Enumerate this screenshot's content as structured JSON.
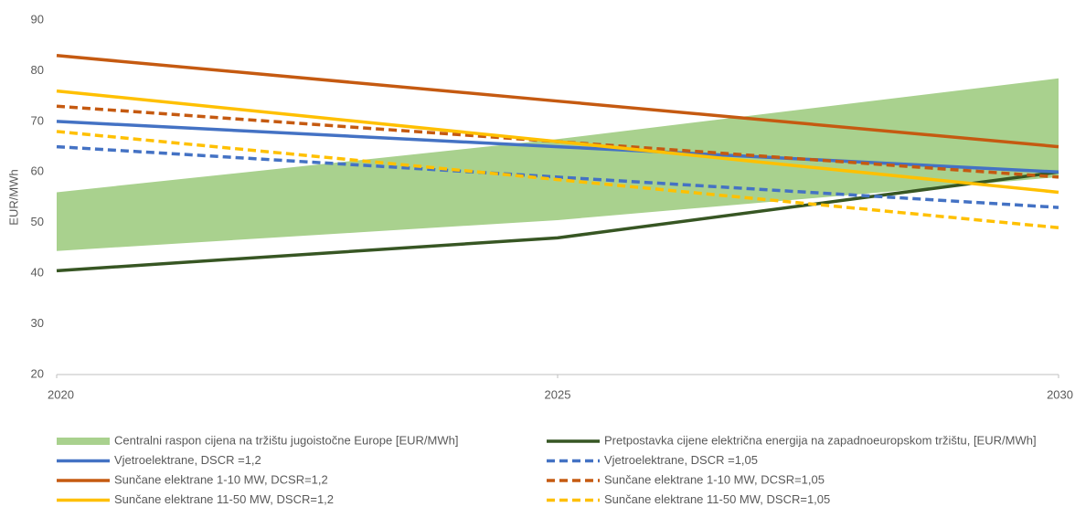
{
  "chart_data": {
    "type": "line",
    "y_label": "EUR/MWh",
    "x": [
      2020,
      2025,
      2030
    ],
    "xlim": [
      2020,
      2030
    ],
    "xticks": [
      2020,
      2025,
      2030
    ],
    "ylim": [
      20,
      90
    ],
    "yticks": [
      20,
      30,
      40,
      50,
      60,
      70,
      80,
      90
    ],
    "grid": false,
    "band": {
      "name": "Centralni raspon cijena na tržištu jugoistočne Europe  [EUR/MWh]",
      "color": "#a9d18e",
      "low": [
        44.4,
        50.5,
        59
      ],
      "high": [
        56,
        66.5,
        78.5
      ]
    },
    "series": [
      {
        "name": "Pretpostavka cijene električna energija na zapadnoeuropskom tržištu,  [EUR/MWh]",
        "color": "#375623",
        "dashed": false,
        "values": [
          40.5,
          47,
          60
        ]
      },
      {
        "name": "Vjetroelektrane, DSCR =1,2",
        "color": "#4472c4",
        "dashed": false,
        "values": [
          70,
          65,
          60
        ]
      },
      {
        "name": "Vjetroelektrane, DSCR =1,05",
        "color": "#4472c4",
        "dashed": true,
        "values": [
          65,
          59,
          53
        ]
      },
      {
        "name": "Sunčane elektrane 1-10 MW, DCSR=1,2",
        "color": "#c55a11",
        "dashed": false,
        "values": [
          83,
          74,
          65
        ]
      },
      {
        "name": "Sunčane elektrane 1-10 MW, DCSR=1,05",
        "color": "#c55a11",
        "dashed": true,
        "values": [
          73,
          66,
          59
        ]
      },
      {
        "name": "Sunčane elektrane 11-50 MW, DSCR=1,2",
        "color": "#ffc000",
        "dashed": false,
        "values": [
          76,
          66,
          56
        ]
      },
      {
        "name": "Sunčane elektrane 11-50 MW, DSCR=1,05",
        "color": "#ffc000",
        "dashed": true,
        "values": [
          68,
          58.5,
          49
        ]
      }
    ]
  }
}
